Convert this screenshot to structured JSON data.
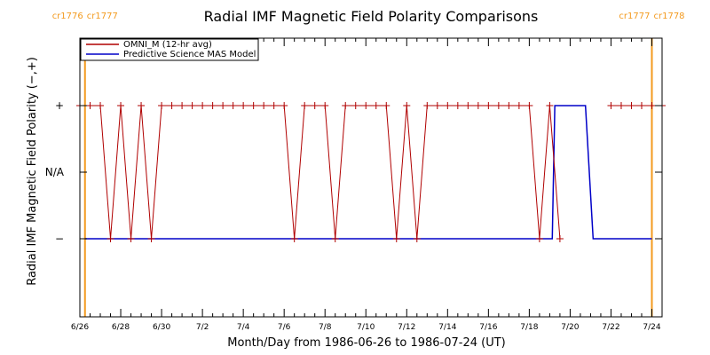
{
  "chart_data": {
    "type": "line",
    "title": "Radial IMF Magnetic Field Polarity Comparisons",
    "xlabel": "Month/Day from 1986-06-26 to 1986-07-24 (UT)",
    "ylabel": "Radial IMF Magnetic Field Polarity (−,+)",
    "xlim": [
      "1986-06-26T00:00",
      "1986-07-24T12:00"
    ],
    "x_tick_labels": [
      "6/26",
      "6/28",
      "6/30",
      "7/2",
      "7/4",
      "7/6",
      "7/8",
      "7/10",
      "7/12",
      "7/14",
      "7/16",
      "7/18",
      "7/20",
      "7/22",
      "7/24"
    ],
    "y_categories": [
      "−",
      "N/A",
      "+"
    ],
    "legend_position": "top-left",
    "grid": false,
    "colors": {
      "omni": "#b00000",
      "mas": "#0000c8",
      "carrington": "#f39a1e"
    },
    "carrington_markers": [
      {
        "date": "1986-06-26T06:00",
        "label_left": "cr1776",
        "label_right": "cr1777"
      },
      {
        "date": "1986-07-24T00:00",
        "label_left": "cr1777",
        "label_right": "cr1778"
      }
    ],
    "series": [
      {
        "name": "OMNI_M (12-hr avg)",
        "marker": "plus",
        "x": [
          "1986-06-26T00:00",
          "1986-06-26T12:00",
          "1986-06-27T00:00",
          "1986-06-27T12:00",
          "1986-06-28T00:00",
          "1986-06-28T12:00",
          "1986-06-29T00:00",
          "1986-06-29T12:00",
          "1986-06-30T00:00",
          "1986-06-30T12:00",
          "1986-07-01T00:00",
          "1986-07-01T12:00",
          "1986-07-02T00:00",
          "1986-07-02T12:00",
          "1986-07-03T00:00",
          "1986-07-03T12:00",
          "1986-07-04T00:00",
          "1986-07-04T12:00",
          "1986-07-05T00:00",
          "1986-07-05T12:00",
          "1986-07-06T00:00",
          "1986-07-06T12:00",
          "1986-07-07T00:00",
          "1986-07-07T12:00",
          "1986-07-08T00:00",
          "1986-07-08T12:00",
          "1986-07-09T00:00",
          "1986-07-09T12:00",
          "1986-07-10T00:00",
          "1986-07-10T12:00",
          "1986-07-11T00:00",
          "1986-07-11T12:00",
          "1986-07-12T00:00",
          "1986-07-12T12:00",
          "1986-07-13T00:00",
          "1986-07-13T12:00",
          "1986-07-14T00:00",
          "1986-07-14T12:00",
          "1986-07-15T00:00",
          "1986-07-15T12:00",
          "1986-07-16T00:00",
          "1986-07-16T12:00",
          "1986-07-17T00:00",
          "1986-07-17T12:00",
          "1986-07-18T00:00",
          "1986-07-18T12:00",
          "1986-07-19T00:00",
          "1986-07-19T12:00",
          "1986-07-20T00:00",
          "1986-07-20T12:00",
          "1986-07-21T00:00",
          "1986-07-21T12:00",
          "1986-07-22T00:00",
          "1986-07-22T12:00",
          "1986-07-23T00:00",
          "1986-07-23T12:00",
          "1986-07-24T00:00",
          "1986-07-24T12:00"
        ],
        "y": [
          "+",
          "+",
          "+",
          "−",
          "+",
          "−",
          "+",
          "−",
          "+",
          "+",
          "+",
          "+",
          "+",
          "+",
          "+",
          "+",
          "+",
          "+",
          "+",
          "+",
          "+",
          "−",
          "+",
          "+",
          "+",
          "−",
          "+",
          "+",
          "+",
          "+",
          "+",
          "−",
          "+",
          "−",
          "+",
          "+",
          "+",
          "+",
          "+",
          "+",
          "+",
          "+",
          "+",
          "+",
          "+",
          "−",
          "+",
          "−",
          "N/A",
          "N/A",
          "N/A",
          "N/A",
          "+",
          "+",
          "+",
          "+",
          "+",
          "+"
        ]
      },
      {
        "name": "Predictive Science MAS Model",
        "marker": "none",
        "x": [
          "1986-06-26T06:00",
          "1986-07-19T03:00",
          "1986-07-19T06:00",
          "1986-07-20T18:00",
          "1986-07-21T03:00",
          "1986-07-24T00:00"
        ],
        "y": [
          "−",
          "−",
          "+",
          "+",
          "−",
          "−"
        ]
      }
    ]
  }
}
